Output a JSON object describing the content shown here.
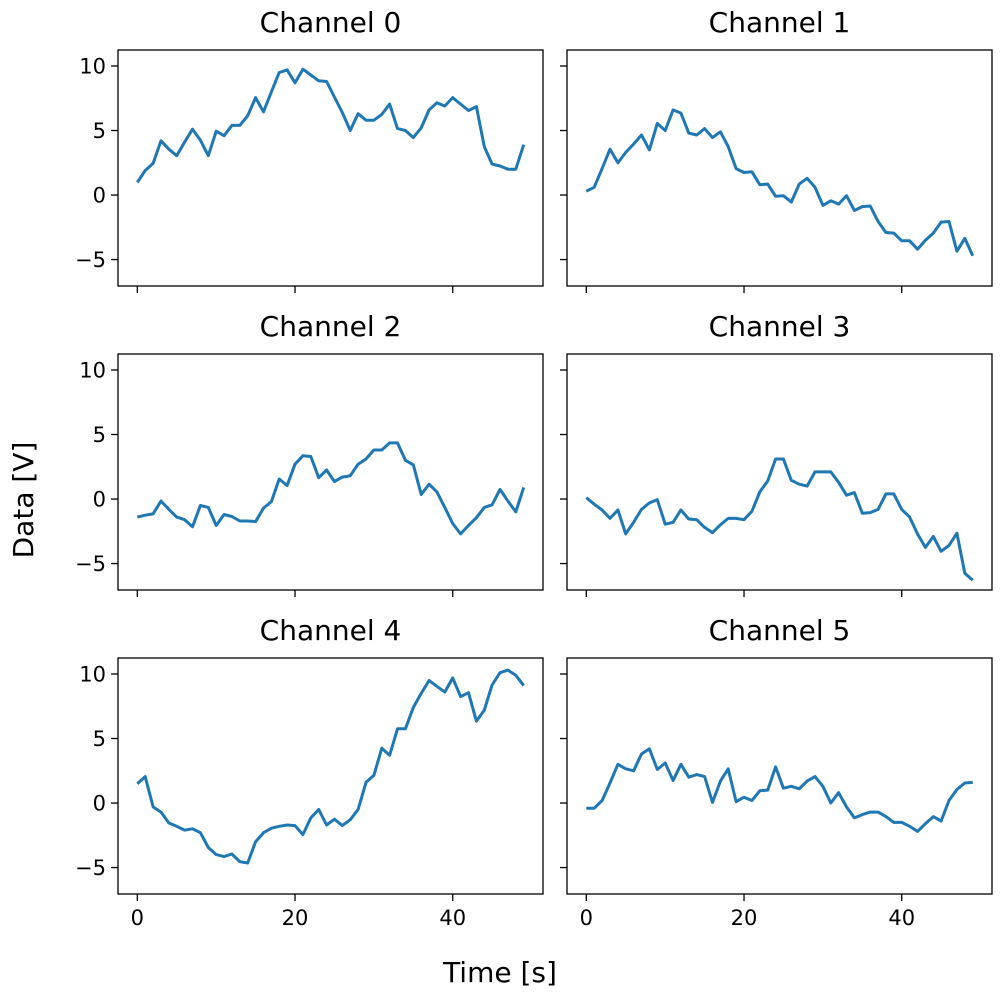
{
  "chart_data": {
    "type": "line",
    "layout": "3x2 grid, shared x and y axes",
    "xlabel": "Time [s]",
    "ylabel": "Data [V]",
    "xlim": [
      -2.45,
      51.45
    ],
    "ylim": [
      -7.05,
      11.24
    ],
    "xticks": [
      0,
      20,
      40
    ],
    "yticks": [
      -5,
      0,
      5,
      10
    ],
    "line_color": "#1f77b4",
    "grid": false,
    "x": [
      0,
      1,
      2,
      3,
      4,
      5,
      6,
      7,
      8,
      9,
      10,
      11,
      12,
      13,
      14,
      15,
      16,
      17,
      18,
      19,
      20,
      21,
      22,
      23,
      24,
      25,
      26,
      27,
      28,
      29,
      30,
      31,
      32,
      33,
      34,
      35,
      36,
      37,
      38,
      39,
      40,
      41,
      42,
      43,
      44,
      45,
      46,
      47,
      48,
      49
    ],
    "panels": [
      {
        "title": "Channel 0",
        "values": [
          0.98,
          1.9,
          2.45,
          4.2,
          3.55,
          3.05,
          4.1,
          5.1,
          4.25,
          3.05,
          4.95,
          4.6,
          5.4,
          5.4,
          6.15,
          7.55,
          6.45,
          8.0,
          9.5,
          9.7,
          8.7,
          9.75,
          9.3,
          8.85,
          8.8,
          7.6,
          6.4,
          5.0,
          6.3,
          5.8,
          5.8,
          6.25,
          7.05,
          5.15,
          5.0,
          4.45,
          5.2,
          6.6,
          7.15,
          6.9,
          7.55,
          7.05,
          6.55,
          6.85,
          3.75,
          2.4,
          2.25,
          2.0,
          2.0,
          3.9
        ]
      },
      {
        "title": "Channel 1",
        "values": [
          0.3,
          0.6,
          2.05,
          3.55,
          2.5,
          3.3,
          3.95,
          4.65,
          3.5,
          5.55,
          5.0,
          6.6,
          6.35,
          4.8,
          4.65,
          5.15,
          4.45,
          4.9,
          3.75,
          2.05,
          1.75,
          1.8,
          0.8,
          0.85,
          -0.1,
          -0.05,
          -0.55,
          0.85,
          1.3,
          0.6,
          -0.8,
          -0.45,
          -0.7,
          -0.05,
          -1.2,
          -0.9,
          -0.85,
          -2.05,
          -2.9,
          -2.95,
          -3.55,
          -3.55,
          -4.2,
          -3.5,
          -2.95,
          -2.1,
          -2.05,
          -4.35,
          -3.35,
          -4.7
        ]
      },
      {
        "title": "Channel 2",
        "values": [
          -1.4,
          -1.25,
          -1.15,
          -0.15,
          -0.8,
          -1.4,
          -1.6,
          -2.15,
          -0.5,
          -0.65,
          -2.05,
          -1.2,
          -1.35,
          -1.7,
          -1.7,
          -1.75,
          -0.7,
          -0.2,
          1.55,
          1.05,
          2.7,
          3.35,
          3.3,
          1.65,
          2.25,
          1.35,
          1.7,
          1.8,
          2.7,
          3.1,
          3.8,
          3.8,
          4.35,
          4.35,
          3.0,
          2.65,
          0.35,
          1.15,
          0.55,
          -0.65,
          -1.9,
          -2.7,
          -2.05,
          -1.45,
          -0.65,
          -0.45,
          0.75,
          -0.15,
          -1.0,
          0.9
        ]
      },
      {
        "title": "Channel 3",
        "values": [
          0.1,
          -0.4,
          -0.85,
          -1.5,
          -0.85,
          -2.7,
          -1.8,
          -0.8,
          -0.3,
          -0.05,
          -1.95,
          -1.8,
          -0.85,
          -1.55,
          -1.6,
          -2.2,
          -2.6,
          -2.0,
          -1.5,
          -1.5,
          -1.6,
          -0.95,
          0.55,
          1.4,
          3.1,
          3.1,
          1.45,
          1.15,
          1.0,
          2.1,
          2.1,
          2.1,
          1.3,
          0.3,
          0.5,
          -1.1,
          -1.05,
          -0.8,
          0.4,
          0.4,
          -0.8,
          -1.4,
          -2.7,
          -3.75,
          -2.9,
          -4.05,
          -3.6,
          -2.65,
          -5.75,
          -6.3
        ]
      },
      {
        "title": "Channel 4",
        "values": [
          1.5,
          2.05,
          -0.3,
          -0.7,
          -1.55,
          -1.8,
          -2.1,
          -2.0,
          -2.3,
          -3.45,
          -4.0,
          -4.15,
          -3.95,
          -4.55,
          -4.65,
          -3.0,
          -2.3,
          -1.95,
          -1.8,
          -1.7,
          -1.75,
          -2.45,
          -1.15,
          -0.5,
          -1.7,
          -1.25,
          -1.75,
          -1.3,
          -0.5,
          1.6,
          2.15,
          4.25,
          3.7,
          5.75,
          5.75,
          7.4,
          8.5,
          9.5,
          9.05,
          8.6,
          9.7,
          8.25,
          8.55,
          6.35,
          7.2,
          9.15,
          10.1,
          10.3,
          9.9,
          9.1
        ]
      },
      {
        "title": "Channel 5",
        "values": [
          -0.4,
          -0.4,
          0.2,
          1.55,
          3.0,
          2.65,
          2.5,
          3.8,
          4.2,
          2.6,
          3.1,
          1.75,
          3.0,
          2.0,
          2.2,
          2.05,
          0.05,
          1.7,
          2.65,
          0.1,
          0.45,
          0.2,
          0.95,
          1.0,
          2.8,
          1.15,
          1.3,
          1.1,
          1.7,
          2.05,
          1.3,
          0.0,
          0.8,
          -0.3,
          -1.15,
          -0.9,
          -0.7,
          -0.7,
          -1.05,
          -1.5,
          -1.5,
          -1.8,
          -2.2,
          -1.6,
          -1.05,
          -1.4,
          0.2,
          1.05,
          1.55,
          1.6
        ]
      }
    ]
  }
}
